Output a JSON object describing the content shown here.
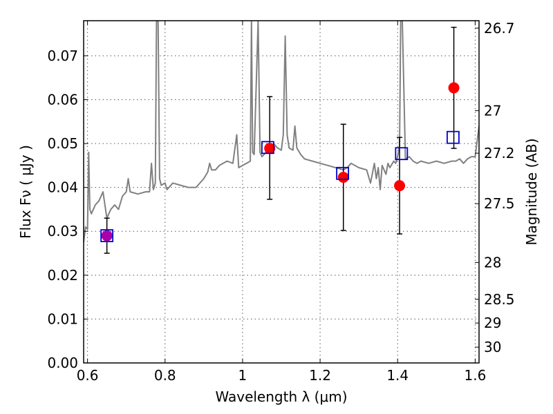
{
  "chart_data": {
    "type": "scatter",
    "xlabel": "Wavelength  λ (μm)",
    "ylabel": "Flux  Fν  ( μJy )",
    "ylabel_right": "Magnitude (AB)",
    "xlim": [
      0.59,
      1.61
    ],
    "ylim": [
      0.0,
      0.078
    ],
    "grid": true,
    "x_ticks": [
      0.6,
      0.8,
      1.0,
      1.2,
      1.4,
      1.6
    ],
    "x_tick_labels": [
      "0.6",
      "0.8",
      "1",
      "1.2",
      "1.4",
      "1.6"
    ],
    "y_ticks": [
      0.0,
      0.01,
      0.02,
      0.03,
      0.04,
      0.05,
      0.06,
      0.07
    ],
    "y_tick_labels": [
      "0.00",
      "0.01",
      "0.02",
      "0.03",
      "0.04",
      "0.05",
      "0.06",
      "0.07"
    ],
    "right_ticks": [
      {
        "label": "26.7",
        "flux": 0.0763
      },
      {
        "label": "27",
        "flux": 0.0575
      },
      {
        "label": "27.2",
        "flux": 0.0478
      },
      {
        "label": "27.5",
        "flux": 0.0363
      },
      {
        "label": "28",
        "flux": 0.0229
      },
      {
        "label": "28.5",
        "flux": 0.0145
      },
      {
        "label": "29",
        "flux": 0.0091
      },
      {
        "label": "30",
        "flux": 0.0036
      }
    ],
    "colors": {
      "model": "#808080",
      "observed": "#ff0000",
      "synthetic": "#0000cc",
      "errorbar": "#000000",
      "observed_first": "#aa00aa"
    },
    "series": [
      {
        "kind": "observed",
        "points": [
          {
            "x": 0.65,
            "y": 0.029,
            "yerr_low": 0.025,
            "yerr_high": 0.033
          },
          {
            "x": 1.07,
            "y": 0.0489,
            "yerr_low": 0.0373,
            "yerr_high": 0.0607
          },
          {
            "x": 1.26,
            "y": 0.0423,
            "yerr_low": 0.0302,
            "yerr_high": 0.0544
          },
          {
            "x": 1.405,
            "y": 0.0404,
            "yerr_low": 0.0294,
            "yerr_high": 0.0514
          },
          {
            "x": 1.545,
            "y": 0.0627,
            "yerr_low": 0.0489,
            "yerr_high": 0.0765
          }
        ]
      },
      {
        "kind": "synthetic",
        "points": [
          {
            "x": 0.65,
            "y": 0.029
          },
          {
            "x": 1.065,
            "y": 0.0491
          },
          {
            "x": 1.258,
            "y": 0.0432
          },
          {
            "x": 1.41,
            "y": 0.0477
          },
          {
            "x": 1.543,
            "y": 0.0514
          }
        ]
      },
      {
        "kind": "model",
        "points": [
          [
            0.59,
            0.0275
          ],
          [
            0.595,
            0.031
          ],
          [
            0.6,
            0.0305
          ],
          [
            0.603,
            0.048
          ],
          [
            0.606,
            0.035
          ],
          [
            0.61,
            0.034
          ],
          [
            0.62,
            0.036
          ],
          [
            0.63,
            0.037
          ],
          [
            0.64,
            0.039
          ],
          [
            0.645,
            0.036
          ],
          [
            0.65,
            0.033
          ],
          [
            0.66,
            0.035
          ],
          [
            0.67,
            0.036
          ],
          [
            0.68,
            0.035
          ],
          [
            0.69,
            0.038
          ],
          [
            0.7,
            0.039
          ],
          [
            0.705,
            0.042
          ],
          [
            0.71,
            0.039
          ],
          [
            0.73,
            0.0385
          ],
          [
            0.75,
            0.039
          ],
          [
            0.76,
            0.039
          ],
          [
            0.765,
            0.0455
          ],
          [
            0.77,
            0.0395
          ],
          [
            0.775,
            0.041
          ],
          [
            0.778,
            0.078
          ],
          [
            0.782,
            0.078
          ],
          [
            0.786,
            0.042
          ],
          [
            0.79,
            0.0405
          ],
          [
            0.8,
            0.041
          ],
          [
            0.805,
            0.0395
          ],
          [
            0.82,
            0.041
          ],
          [
            0.84,
            0.0405
          ],
          [
            0.86,
            0.04
          ],
          [
            0.88,
            0.04
          ],
          [
            0.9,
            0.042
          ],
          [
            0.91,
            0.0435
          ],
          [
            0.915,
            0.0455
          ],
          [
            0.92,
            0.044
          ],
          [
            0.93,
            0.044
          ],
          [
            0.94,
            0.045
          ],
          [
            0.96,
            0.046
          ],
          [
            0.975,
            0.0455
          ],
          [
            0.985,
            0.052
          ],
          [
            0.99,
            0.0445
          ],
          [
            1.0,
            0.045
          ],
          [
            1.01,
            0.0455
          ],
          [
            1.02,
            0.046
          ],
          [
            1.023,
            0.078
          ],
          [
            1.026,
            0.048
          ],
          [
            1.03,
            0.0475
          ],
          [
            1.04,
            0.078
          ],
          [
            1.045,
            0.048
          ],
          [
            1.05,
            0.047
          ],
          [
            1.06,
            0.048
          ],
          [
            1.07,
            0.0485
          ],
          [
            1.08,
            0.05
          ],
          [
            1.09,
            0.049
          ],
          [
            1.1,
            0.0485
          ],
          [
            1.105,
            0.052
          ],
          [
            1.11,
            0.0745
          ],
          [
            1.115,
            0.052
          ],
          [
            1.12,
            0.049
          ],
          [
            1.13,
            0.0485
          ],
          [
            1.135,
            0.054
          ],
          [
            1.14,
            0.049
          ],
          [
            1.15,
            0.0475
          ],
          [
            1.16,
            0.0465
          ],
          [
            1.18,
            0.046
          ],
          [
            1.2,
            0.0455
          ],
          [
            1.22,
            0.045
          ],
          [
            1.24,
            0.0445
          ],
          [
            1.26,
            0.044
          ],
          [
            1.27,
            0.0445
          ],
          [
            1.28,
            0.0455
          ],
          [
            1.3,
            0.0445
          ],
          [
            1.32,
            0.044
          ],
          [
            1.33,
            0.041
          ],
          [
            1.34,
            0.0455
          ],
          [
            1.345,
            0.042
          ],
          [
            1.35,
            0.0445
          ],
          [
            1.355,
            0.0395
          ],
          [
            1.36,
            0.045
          ],
          [
            1.37,
            0.043
          ],
          [
            1.375,
            0.0455
          ],
          [
            1.38,
            0.0445
          ],
          [
            1.39,
            0.046
          ],
          [
            1.395,
            0.0455
          ],
          [
            1.4,
            0.047
          ],
          [
            1.405,
            0.0495
          ],
          [
            1.408,
            0.078
          ],
          [
            1.412,
            0.078
          ],
          [
            1.42,
            0.0465
          ],
          [
            1.43,
            0.047
          ],
          [
            1.44,
            0.046
          ],
          [
            1.45,
            0.0455
          ],
          [
            1.46,
            0.046
          ],
          [
            1.48,
            0.0455
          ],
          [
            1.5,
            0.046
          ],
          [
            1.52,
            0.0455
          ],
          [
            1.54,
            0.046
          ],
          [
            1.55,
            0.046
          ],
          [
            1.56,
            0.0465
          ],
          [
            1.57,
            0.0455
          ],
          [
            1.58,
            0.0465
          ],
          [
            1.59,
            0.047
          ],
          [
            1.6,
            0.047
          ],
          [
            1.61,
            0.054
          ]
        ]
      }
    ]
  }
}
